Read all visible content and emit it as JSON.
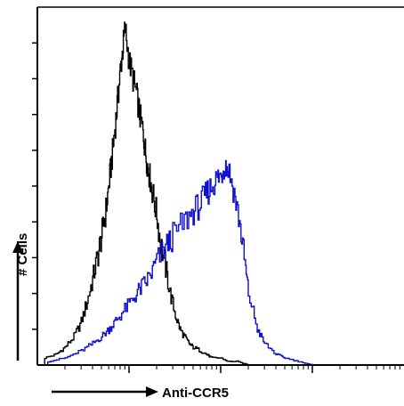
{
  "chart_data": {
    "type": "line",
    "xlabel": "Anti-CCR5",
    "ylabel": "# Cells",
    "x_scale": "log",
    "xlim": [
      1,
      10000
    ],
    "ylim": [
      0,
      100
    ],
    "grid": false,
    "legend": "none",
    "series": [
      {
        "color": "#000000",
        "x": [
          1.2,
          1.6,
          2,
          2.5,
          3,
          3.5,
          4,
          4.5,
          5,
          5.5,
          6,
          6.5,
          7,
          7.5,
          8,
          8.5,
          9,
          10,
          11,
          12,
          13,
          14,
          15,
          16,
          17,
          18,
          20,
          22,
          25,
          28,
          32,
          36,
          40,
          45,
          50,
          60,
          70,
          80,
          100,
          120,
          150,
          200
        ],
        "y": [
          2,
          3,
          5,
          8,
          12,
          18,
          24,
          30,
          36,
          42,
          50,
          58,
          66,
          74,
          82,
          88,
          94,
          85,
          80,
          76,
          70,
          66,
          60,
          55,
          52,
          48,
          42,
          34,
          27,
          20,
          14,
          10,
          8,
          6,
          5,
          4,
          3,
          2,
          2,
          1,
          1,
          0
        ]
      },
      {
        "color": "#1010d0",
        "x": [
          1.3,
          2,
          3,
          4,
          5,
          6,
          7,
          8,
          10,
          12,
          14,
          17,
          20,
          25,
          30,
          40,
          50,
          60,
          70,
          80,
          90,
          100,
          110,
          120,
          140,
          160,
          180,
          200,
          250,
          300,
          400,
          500,
          700,
          1000
        ],
        "y": [
          1,
          2,
          4,
          6,
          8,
          10,
          12,
          14,
          17,
          20,
          22,
          25,
          29,
          33,
          36,
          40,
          43,
          45,
          48,
          50,
          52,
          53,
          56,
          55,
          48,
          40,
          30,
          20,
          10,
          6,
          3,
          2,
          1,
          0
        ]
      }
    ]
  }
}
